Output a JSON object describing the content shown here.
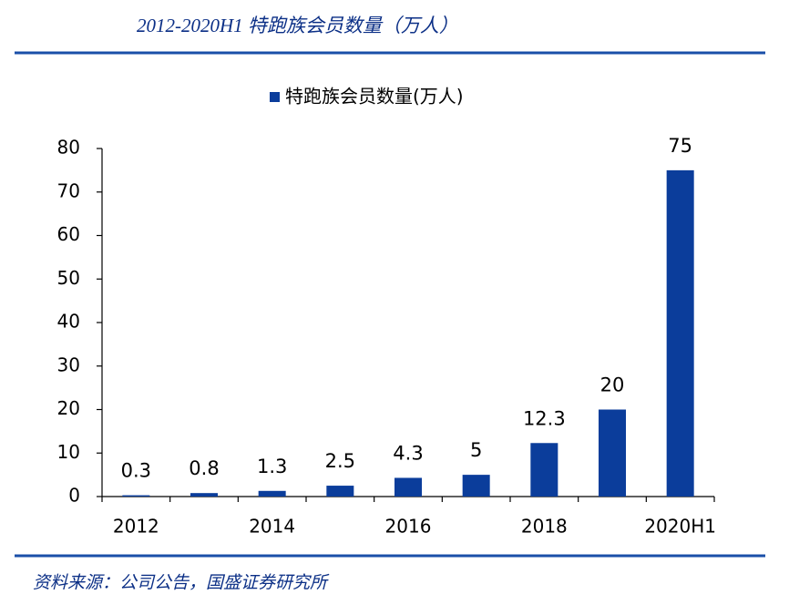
{
  "chart_data": {
    "type": "bar",
    "title": "2012-2020H1 特跑族会员数量（万人）",
    "legend": "特跑族会员数量(万人)",
    "source": "资料来源：公司公告，国盛证券研究所",
    "categories": [
      "2012",
      null,
      "2014",
      null,
      "2016",
      null,
      "2018",
      null,
      "2020H1"
    ],
    "values": [
      0.3,
      0.8,
      1.3,
      2.5,
      4.3,
      5,
      12.3,
      20,
      75
    ],
    "color": "#0b3d9b",
    "ylim": [
      0,
      80
    ],
    "yticks": [
      0,
      10,
      20,
      30,
      40,
      50,
      60,
      70,
      80
    ]
  }
}
